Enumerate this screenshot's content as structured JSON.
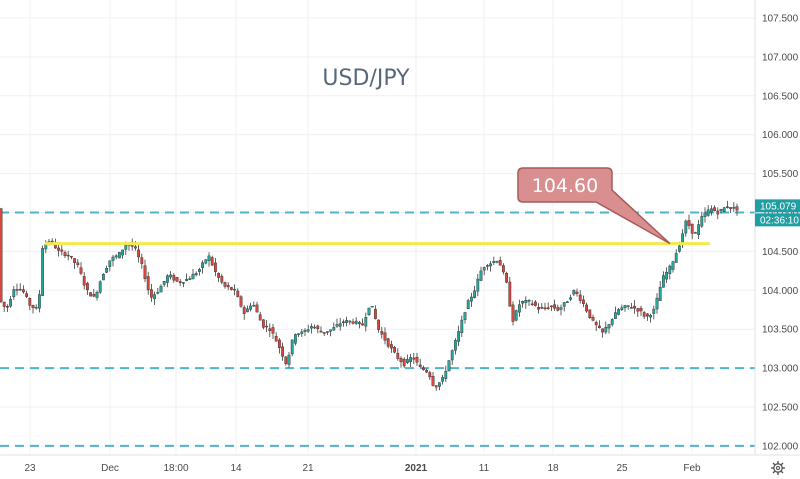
{
  "chart_data": {
    "type": "candlestick",
    "title": "USD/JPY",
    "y_ticks": [
      "107.500",
      "107.000",
      "106.500",
      "106.000",
      "105.500",
      "105.000",
      "104.500",
      "104.000",
      "103.500",
      "103.000",
      "102.500",
      "102.000"
    ],
    "x_ticks": [
      "23",
      "Dec",
      "18:00",
      "14",
      "21",
      "2021",
      "11",
      "18",
      "25",
      "Feb"
    ],
    "ylim": [
      101.95,
      107.65
    ],
    "grid": true,
    "last_price": "105.079",
    "countdown": "02:36:10",
    "annotation": {
      "label": "104.60",
      "value": 104.6
    },
    "horizontal_line": {
      "value": 104.6,
      "color": "#f5e94d"
    },
    "dashed_levels": [
      105.0,
      103.0,
      102.0
    ],
    "approx_price_path": [
      [
        0,
        103.9
      ],
      [
        8,
        103.75
      ],
      [
        16,
        104.05
      ],
      [
        24,
        104.0
      ],
      [
        32,
        103.8
      ],
      [
        40,
        103.75
      ],
      [
        44,
        104.55
      ],
      [
        52,
        104.65
      ],
      [
        60,
        104.5
      ],
      [
        70,
        104.45
      ],
      [
        80,
        104.3
      ],
      [
        88,
        104.0
      ],
      [
        96,
        103.9
      ],
      [
        104,
        104.2
      ],
      [
        112,
        104.4
      ],
      [
        120,
        104.45
      ],
      [
        128,
        104.6
      ],
      [
        136,
        104.55
      ],
      [
        144,
        104.3
      ],
      [
        152,
        103.9
      ],
      [
        160,
        104.0
      ],
      [
        170,
        104.2
      ],
      [
        180,
        104.1
      ],
      [
        190,
        104.15
      ],
      [
        200,
        104.25
      ],
      [
        210,
        104.45
      ],
      [
        218,
        104.2
      ],
      [
        226,
        104.05
      ],
      [
        236,
        104.0
      ],
      [
        246,
        103.7
      ],
      [
        254,
        103.85
      ],
      [
        264,
        103.55
      ],
      [
        272,
        103.5
      ],
      [
        280,
        103.3
      ],
      [
        288,
        103.05
      ],
      [
        296,
        103.45
      ],
      [
        304,
        103.45
      ],
      [
        314,
        103.55
      ],
      [
        324,
        103.45
      ],
      [
        334,
        103.5
      ],
      [
        344,
        103.6
      ],
      [
        354,
        103.6
      ],
      [
        364,
        103.55
      ],
      [
        372,
        103.85
      ],
      [
        380,
        103.5
      ],
      [
        390,
        103.3
      ],
      [
        398,
        103.15
      ],
      [
        406,
        103.05
      ],
      [
        414,
        103.15
      ],
      [
        422,
        103.0
      ],
      [
        430,
        102.95
      ],
      [
        436,
        102.75
      ],
      [
        444,
        102.85
      ],
      [
        452,
        103.15
      ],
      [
        460,
        103.45
      ],
      [
        468,
        103.8
      ],
      [
        476,
        104.0
      ],
      [
        484,
        104.3
      ],
      [
        492,
        104.35
      ],
      [
        500,
        104.4
      ],
      [
        508,
        104.1
      ],
      [
        514,
        103.6
      ],
      [
        522,
        103.85
      ],
      [
        532,
        103.85
      ],
      [
        542,
        103.75
      ],
      [
        552,
        103.8
      ],
      [
        560,
        103.75
      ],
      [
        568,
        103.85
      ],
      [
        576,
        104.0
      ],
      [
        584,
        103.85
      ],
      [
        594,
        103.6
      ],
      [
        604,
        103.45
      ],
      [
        612,
        103.6
      ],
      [
        620,
        103.75
      ],
      [
        630,
        103.8
      ],
      [
        640,
        103.75
      ],
      [
        648,
        103.65
      ],
      [
        656,
        103.75
      ],
      [
        664,
        104.15
      ],
      [
        672,
        104.3
      ],
      [
        680,
        104.55
      ],
      [
        688,
        104.9
      ],
      [
        696,
        104.7
      ],
      [
        704,
        104.95
      ],
      [
        712,
        105.05
      ],
      [
        720,
        105.0
      ],
      [
        728,
        105.08
      ],
      [
        736,
        105.05
      ]
    ]
  }
}
